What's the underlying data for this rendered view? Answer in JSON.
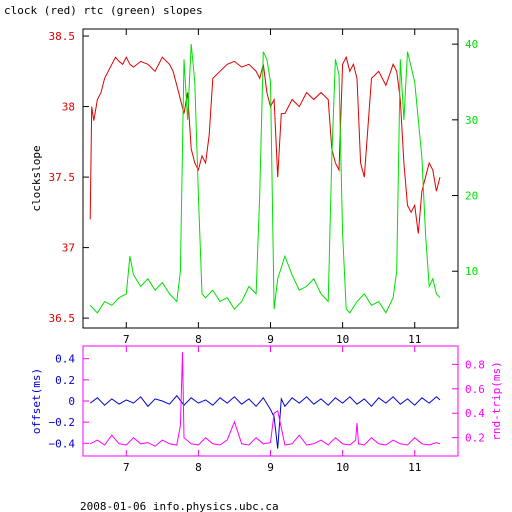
{
  "title": "clock (red) rtc (green) slopes",
  "footer": "2008-01-06 info.physics.ubc.ca",
  "colors": {
    "clock": "#e00000",
    "rtc": "#00e000",
    "offset": "#0000d0",
    "roundtrip": "#ff00ff",
    "axis": "#000000"
  },
  "chart_data": [
    {
      "type": "line",
      "title": "clock (red) rtc (green) slopes",
      "xlabel": "",
      "ylabel": "clockslope",
      "y2label": "",
      "xlim": [
        6.4,
        11.6
      ],
      "ylim": [
        36.43,
        38.55
      ],
      "y2lim": [
        2.5,
        42
      ],
      "x_ticks": [
        7,
        8,
        9,
        10,
        11
      ],
      "x_tick_labels": [
        "7",
        "8",
        "9",
        "10",
        "11"
      ],
      "y_ticks": [
        36.5,
        37,
        37.5,
        38,
        38.5
      ],
      "y_tick_labels": [
        "36.5",
        "37",
        "37.5",
        "38",
        "38.5"
      ],
      "y2_ticks": [
        10,
        20,
        30,
        40
      ],
      "y2_tick_labels": [
        "10",
        "20",
        "30",
        "40"
      ],
      "series": [
        {
          "name": "clock",
          "axis": "left",
          "x": [
            6.5,
            6.52,
            6.55,
            6.6,
            6.65,
            6.7,
            6.75,
            6.8,
            6.85,
            6.9,
            6.95,
            7.0,
            7.05,
            7.1,
            7.2,
            7.3,
            7.4,
            7.5,
            7.6,
            7.65,
            7.7,
            7.75,
            7.8,
            7.85,
            7.9,
            7.95,
            8.0,
            8.05,
            8.1,
            8.15,
            8.2,
            8.3,
            8.4,
            8.5,
            8.6,
            8.7,
            8.8,
            8.85,
            8.9,
            8.95,
            9.0,
            9.05,
            9.1,
            9.15,
            9.2,
            9.3,
            9.4,
            9.5,
            9.6,
            9.7,
            9.8,
            9.85,
            9.9,
            9.95,
            10.0,
            10.05,
            10.1,
            10.15,
            10.2,
            10.25,
            10.3,
            10.4,
            10.5,
            10.6,
            10.7,
            10.75,
            10.8,
            10.85,
            10.9,
            10.95,
            11.0,
            11.05,
            11.1,
            11.15,
            11.2,
            11.25,
            11.3,
            11.35
          ],
          "y": [
            37.2,
            38.0,
            37.9,
            38.05,
            38.1,
            38.2,
            38.25,
            38.3,
            38.35,
            38.32,
            38.3,
            38.35,
            38.3,
            38.28,
            38.32,
            38.3,
            38.25,
            38.35,
            38.3,
            38.25,
            38.15,
            38.05,
            37.95,
            38.1,
            37.7,
            37.6,
            37.55,
            37.65,
            37.6,
            37.8,
            38.2,
            38.25,
            38.3,
            38.32,
            38.28,
            38.3,
            38.25,
            38.2,
            38.3,
            38.1,
            38.0,
            38.05,
            37.5,
            37.95,
            37.95,
            38.05,
            38.0,
            38.1,
            38.05,
            38.1,
            38.05,
            37.7,
            37.6,
            37.55,
            38.3,
            38.35,
            38.25,
            38.3,
            38.2,
            37.6,
            37.5,
            38.2,
            38.25,
            38.15,
            38.3,
            38.25,
            38.05,
            37.6,
            37.3,
            37.25,
            37.3,
            37.1,
            37.4,
            37.5,
            37.6,
            37.55,
            37.4,
            37.5
          ]
        },
        {
          "name": "rtc",
          "axis": "right",
          "x": [
            6.5,
            6.55,
            6.6,
            6.7,
            6.8,
            6.9,
            7.0,
            7.05,
            7.1,
            7.2,
            7.3,
            7.4,
            7.5,
            7.6,
            7.7,
            7.75,
            7.8,
            7.85,
            7.9,
            7.95,
            8.0,
            8.05,
            8.1,
            8.2,
            8.3,
            8.4,
            8.5,
            8.6,
            8.7,
            8.8,
            8.85,
            8.9,
            8.95,
            9.0,
            9.05,
            9.1,
            9.2,
            9.3,
            9.4,
            9.5,
            9.6,
            9.7,
            9.8,
            9.85,
            9.9,
            9.95,
            10.0,
            10.05,
            10.1,
            10.2,
            10.3,
            10.4,
            10.5,
            10.6,
            10.7,
            10.75,
            10.8,
            10.85,
            10.9,
            10.95,
            11.0,
            11.05,
            11.1,
            11.15,
            11.2,
            11.25,
            11.3,
            11.35
          ],
          "y": [
            5.5,
            5.0,
            4.5,
            6.0,
            5.5,
            6.5,
            7.0,
            12.0,
            9.5,
            8.0,
            9.0,
            7.5,
            8.5,
            7.0,
            6.0,
            10.0,
            38.0,
            30.0,
            40.0,
            35.0,
            20.0,
            7.0,
            6.5,
            7.5,
            6.0,
            6.5,
            5.0,
            6.0,
            8.0,
            7.0,
            20.0,
            39.0,
            38.0,
            35.0,
            5.0,
            9.0,
            12.0,
            9.5,
            7.5,
            8.0,
            9.0,
            7.0,
            6.0,
            25.0,
            38.0,
            36.0,
            15.0,
            5.0,
            4.5,
            6.0,
            7.0,
            5.5,
            6.0,
            4.5,
            6.5,
            10.0,
            38.0,
            30.0,
            39.0,
            37.0,
            35.0,
            30.0,
            25.0,
            15.0,
            8.0,
            9.0,
            7.0,
            6.5
          ]
        }
      ]
    },
    {
      "type": "line",
      "title": "",
      "xlabel": "",
      "ylabel": "offset(ms)",
      "y2label": "rnd-trip(ms)",
      "xlim": [
        6.4,
        11.6
      ],
      "ylim": [
        -0.52,
        0.52
      ],
      "y2lim": [
        0.05,
        0.95
      ],
      "x_ticks": [
        7,
        8,
        9,
        10,
        11
      ],
      "x_tick_labels": [
        "7",
        "8",
        "9",
        "10",
        "11"
      ],
      "y_ticks": [
        -0.4,
        -0.2,
        0,
        0.2,
        0.4
      ],
      "y_tick_labels": [
        "−0.4",
        "−0.2",
        "0",
        "0.2",
        "0.4"
      ],
      "y2_ticks": [
        0.2,
        0.4,
        0.6,
        0.8
      ],
      "y2_tick_labels": [
        "0.2",
        "0.4",
        "0.6",
        "0.8"
      ],
      "series": [
        {
          "name": "offset",
          "axis": "left",
          "x": [
            6.5,
            6.6,
            6.7,
            6.8,
            6.9,
            7.0,
            7.1,
            7.2,
            7.3,
            7.4,
            7.5,
            7.6,
            7.7,
            7.8,
            7.9,
            8.0,
            8.1,
            8.2,
            8.3,
            8.4,
            8.5,
            8.6,
            8.7,
            8.8,
            8.9,
            9.0,
            9.05,
            9.1,
            9.15,
            9.2,
            9.3,
            9.4,
            9.5,
            9.6,
            9.7,
            9.8,
            9.9,
            10.0,
            10.1,
            10.2,
            10.3,
            10.4,
            10.5,
            10.6,
            10.7,
            10.8,
            10.9,
            11.0,
            11.1,
            11.2,
            11.3,
            11.35
          ],
          "y": [
            -0.02,
            0.03,
            -0.04,
            0.02,
            -0.03,
            0.01,
            -0.02,
            0.04,
            -0.05,
            0.02,
            0.0,
            -0.03,
            0.05,
            -0.04,
            0.03,
            -0.02,
            0.01,
            -0.04,
            0.03,
            -0.02,
            0.04,
            -0.03,
            0.02,
            -0.05,
            0.03,
            -0.08,
            -0.15,
            -0.45,
            0.02,
            -0.05,
            0.03,
            -0.02,
            0.04,
            -0.03,
            0.02,
            -0.04,
            0.03,
            -0.02,
            0.04,
            -0.03,
            0.02,
            -0.05,
            0.03,
            -0.02,
            0.04,
            -0.03,
            0.02,
            -0.04,
            0.03,
            -0.02,
            0.04,
            0.01
          ]
        },
        {
          "name": "roundtrip",
          "axis": "right",
          "x": [
            6.5,
            6.6,
            6.7,
            6.8,
            6.9,
            7.0,
            7.1,
            7.2,
            7.3,
            7.4,
            7.5,
            7.6,
            7.7,
            7.75,
            7.78,
            7.8,
            7.9,
            8.0,
            8.1,
            8.2,
            8.3,
            8.4,
            8.5,
            8.6,
            8.7,
            8.8,
            8.9,
            9.0,
            9.05,
            9.1,
            9.2,
            9.3,
            9.4,
            9.5,
            9.6,
            9.7,
            9.8,
            9.9,
            10.0,
            10.1,
            10.18,
            10.2,
            10.22,
            10.3,
            10.4,
            10.5,
            10.6,
            10.7,
            10.8,
            10.9,
            11.0,
            11.1,
            11.2,
            11.3,
            11.35
          ],
          "y": [
            0.15,
            0.18,
            0.14,
            0.22,
            0.15,
            0.14,
            0.2,
            0.15,
            0.16,
            0.13,
            0.18,
            0.15,
            0.14,
            0.3,
            0.9,
            0.2,
            0.15,
            0.14,
            0.2,
            0.15,
            0.14,
            0.18,
            0.33,
            0.15,
            0.14,
            0.2,
            0.15,
            0.16,
            0.4,
            0.42,
            0.14,
            0.15,
            0.22,
            0.14,
            0.15,
            0.18,
            0.14,
            0.2,
            0.15,
            0.14,
            0.18,
            0.32,
            0.15,
            0.14,
            0.2,
            0.15,
            0.14,
            0.18,
            0.15,
            0.14,
            0.2,
            0.15,
            0.14,
            0.16,
            0.15
          ]
        }
      ]
    }
  ]
}
